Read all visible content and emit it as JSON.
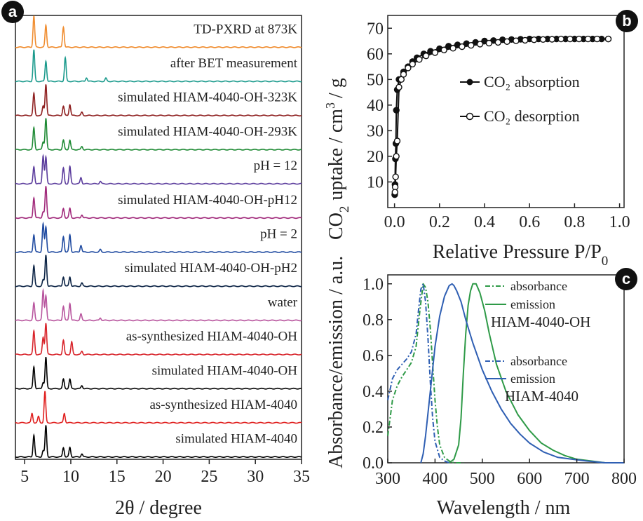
{
  "panel_labels": {
    "a": "a",
    "b": "b",
    "c": "c"
  },
  "chart_data": [
    {
      "panel": "a",
      "type": "line",
      "xlabel": "2θ / degree",
      "ylabel": "",
      "xlim": [
        4,
        35
      ],
      "xticks": [
        "5",
        "10",
        "15",
        "20",
        "25",
        "30",
        "35"
      ],
      "series": [
        {
          "name": "TD-PXRD at 873K",
          "color": "#f08c2e",
          "peaks": [
            [
              6.0,
              1.0
            ],
            [
              7.3,
              0.7
            ],
            [
              9.2,
              0.65
            ]
          ]
        },
        {
          "name": "after BET measurement",
          "color": "#1a9a8c",
          "peaks": [
            [
              6.0,
              1.0
            ],
            [
              7.3,
              0.65
            ],
            [
              9.4,
              0.75
            ],
            [
              11.7,
              0.12
            ],
            [
              13.8,
              0.1
            ]
          ]
        },
        {
          "name": "simulated HIAM-4040-OH-323K",
          "color": "#8e1f1f",
          "peaks": [
            [
              6.0,
              0.7
            ],
            [
              7.0,
              0.3
            ],
            [
              7.3,
              1.0
            ],
            [
              9.2,
              0.3
            ],
            [
              9.9,
              0.35
            ],
            [
              11.2,
              0.1
            ]
          ]
        },
        {
          "name": "simulated HIAM-4040-OH-293K",
          "color": "#1e8a34",
          "peaks": [
            [
              6.0,
              0.7
            ],
            [
              7.0,
              0.25
            ],
            [
              7.3,
              1.0
            ],
            [
              9.2,
              0.3
            ],
            [
              9.9,
              0.3
            ],
            [
              11.2,
              0.1
            ]
          ]
        },
        {
          "name": "pH = 12",
          "color": "#5a3b9c",
          "peaks": [
            [
              6.0,
              0.55
            ],
            [
              7.0,
              0.9
            ],
            [
              7.3,
              0.85
            ],
            [
              9.2,
              0.5
            ],
            [
              9.9,
              0.55
            ],
            [
              11.1,
              0.2
            ],
            [
              13.2,
              0.08
            ]
          ]
        },
        {
          "name": "simulated HIAM-4040-OH-pH12",
          "color": "#a0287a",
          "peaks": [
            [
              6.0,
              0.65
            ],
            [
              7.0,
              0.2
            ],
            [
              7.3,
              1.0
            ],
            [
              9.2,
              0.3
            ],
            [
              9.9,
              0.3
            ],
            [
              11.2,
              0.1
            ]
          ]
        },
        {
          "name": "pH = 2",
          "color": "#1f4aa0",
          "peaks": [
            [
              6.0,
              0.55
            ],
            [
              7.0,
              0.9
            ],
            [
              7.3,
              0.8
            ],
            [
              9.2,
              0.5
            ],
            [
              9.9,
              0.55
            ],
            [
              11.1,
              0.22
            ],
            [
              13.2,
              0.08
            ]
          ]
        },
        {
          "name": "simulated HIAM-4040-OH-pH2",
          "color": "#0a2244",
          "peaks": [
            [
              6.0,
              0.65
            ],
            [
              7.0,
              0.2
            ],
            [
              7.3,
              1.0
            ],
            [
              9.2,
              0.3
            ],
            [
              9.9,
              0.3
            ],
            [
              11.2,
              0.1
            ]
          ]
        },
        {
          "name": "water",
          "color": "#b8559e",
          "peaks": [
            [
              6.0,
              0.55
            ],
            [
              7.0,
              0.95
            ],
            [
              7.3,
              0.8
            ],
            [
              9.2,
              0.45
            ],
            [
              9.9,
              0.55
            ],
            [
              11.1,
              0.2
            ],
            [
              13.2,
              0.08
            ]
          ]
        },
        {
          "name": "as-synthesized HIAM-4040-OH",
          "color": "#d8232a",
          "peaks": [
            [
              6.0,
              0.75
            ],
            [
              7.0,
              0.55
            ],
            [
              7.3,
              1.0
            ],
            [
              9.2,
              0.45
            ],
            [
              10.1,
              0.4
            ],
            [
              11.2,
              0.1
            ]
          ]
        },
        {
          "name": "simulated HIAM-4040-OH",
          "color": "#000000",
          "peaks": [
            [
              6.0,
              0.7
            ],
            [
              7.0,
              0.2
            ],
            [
              7.3,
              1.0
            ],
            [
              9.2,
              0.3
            ],
            [
              9.9,
              0.3
            ],
            [
              11.2,
              0.1
            ]
          ]
        },
        {
          "name": "as-synthesized HIAM-4040",
          "color": "#e0201f",
          "peaks": [
            [
              5.8,
              0.3
            ],
            [
              6.5,
              0.2
            ],
            [
              7.2,
              1.0
            ],
            [
              9.3,
              0.3
            ]
          ]
        },
        {
          "name": "simulated HIAM-4040",
          "color": "#000000",
          "peaks": [
            [
              6.0,
              0.7
            ],
            [
              7.0,
              0.2
            ],
            [
              7.3,
              1.0
            ],
            [
              9.2,
              0.3
            ],
            [
              9.9,
              0.3
            ],
            [
              11.2,
              0.1
            ]
          ]
        }
      ]
    },
    {
      "panel": "b",
      "type": "line",
      "xlabel": "Relative Pressure P/P0",
      "ylabel": "CO2 uptake / cm3 / g",
      "xlim": [
        -0.03,
        1.02
      ],
      "ylim": [
        0,
        75
      ],
      "xticks": [
        "0.0",
        "0.2",
        "0.4",
        "0.6",
        "0.8",
        "1.0"
      ],
      "yticks": [
        "10",
        "20",
        "30",
        "40",
        "50",
        "60",
        "70"
      ],
      "series": [
        {
          "name": "CO2 absorption",
          "x": [
            0.001,
            0.002,
            0.004,
            0.006,
            0.008,
            0.012,
            0.02,
            0.04,
            0.06,
            0.08,
            0.1,
            0.13,
            0.16,
            0.2,
            0.24,
            0.28,
            0.32,
            0.36,
            0.4,
            0.44,
            0.48,
            0.52,
            0.56,
            0.6,
            0.64,
            0.68,
            0.72,
            0.76,
            0.8,
            0.84,
            0.88,
            0.92,
            0.95
          ],
          "y": [
            5,
            9,
            19,
            25,
            38,
            46,
            50,
            53,
            55,
            57,
            58.5,
            60,
            61,
            62,
            63,
            63.5,
            64,
            64.5,
            65,
            65.2,
            65.5,
            65.6,
            65.7,
            65.8,
            65.8,
            65.8,
            65.8,
            65.8,
            65.8,
            65.8,
            65.8,
            65.8,
            65.8
          ]
        },
        {
          "name": "CO2 desorption",
          "x": [
            0.95,
            0.9,
            0.86,
            0.82,
            0.78,
            0.74,
            0.7,
            0.66,
            0.62,
            0.58,
            0.54,
            0.5,
            0.46,
            0.42,
            0.38,
            0.34,
            0.3,
            0.26,
            0.22,
            0.18,
            0.14,
            0.11,
            0.08,
            0.06,
            0.04,
            0.03,
            0.02,
            0.012,
            0.008,
            0.005,
            0.003,
            0.002
          ],
          "y": [
            65.8,
            65.8,
            65.8,
            65.8,
            65.8,
            65.8,
            65.7,
            65.6,
            65.5,
            65.3,
            65.1,
            64.8,
            64.5,
            64.2,
            63.8,
            63.3,
            62.8,
            62.2,
            61.5,
            60.5,
            59.2,
            57.8,
            56,
            54.5,
            52,
            50,
            47,
            26,
            20,
            12,
            8,
            6
          ]
        }
      ]
    },
    {
      "panel": "c",
      "type": "line",
      "xlabel": "Wavelength / nm",
      "ylabel": "Absorbance/emission / a.u.",
      "xlim": [
        300,
        800
      ],
      "ylim": [
        0,
        1.05
      ],
      "xticks": [
        "300",
        "400",
        "500",
        "600",
        "700",
        "800"
      ],
      "yticks": [
        "0.0",
        "0.2",
        "0.4",
        "0.6",
        "0.8",
        "1.0"
      ],
      "series": [
        {
          "name": "HIAM-4040-OH absorbance",
          "color": "#2e9a47",
          "dash": "dashdot",
          "x": [
            300,
            310,
            320,
            330,
            340,
            350,
            360,
            368,
            375,
            380,
            385,
            390,
            395,
            400,
            405,
            410,
            420,
            430,
            440,
            450,
            460
          ],
          "y": [
            0.15,
            0.35,
            0.43,
            0.48,
            0.52,
            0.56,
            0.65,
            0.85,
            1.0,
            0.98,
            0.9,
            0.75,
            0.55,
            0.35,
            0.2,
            0.1,
            0.03,
            0.01,
            0.0,
            0.0,
            0.0
          ]
        },
        {
          "name": "HIAM-4040-OH emission",
          "color": "#2e9a47",
          "dash": "solid",
          "x": [
            430,
            440,
            450,
            455,
            460,
            465,
            470,
            475,
            480,
            487,
            495,
            505,
            515,
            530,
            550,
            575,
            600,
            625,
            650,
            675,
            700,
            730,
            760,
            800
          ],
          "y": [
            0.0,
            0.02,
            0.1,
            0.25,
            0.5,
            0.72,
            0.88,
            0.96,
            1.0,
            1.0,
            0.95,
            0.85,
            0.72,
            0.55,
            0.4,
            0.27,
            0.18,
            0.11,
            0.07,
            0.04,
            0.02,
            0.01,
            0.0,
            0.0
          ]
        },
        {
          "name": "HIAM-4040 absorbance",
          "color": "#2f5fb3",
          "dash": "dashdot",
          "x": [
            300,
            310,
            320,
            330,
            340,
            350,
            360,
            365,
            370,
            375,
            380,
            385,
            390,
            395,
            400,
            410,
            420,
            430
          ],
          "y": [
            0.35,
            0.47,
            0.52,
            0.55,
            0.58,
            0.62,
            0.72,
            0.85,
            0.97,
            1.0,
            0.9,
            0.7,
            0.45,
            0.25,
            0.12,
            0.03,
            0.01,
            0.0
          ]
        },
        {
          "name": "HIAM-4040 emission",
          "color": "#2f5fb3",
          "dash": "solid",
          "x": [
            370,
            375,
            380,
            390,
            400,
            410,
            420,
            430,
            436,
            440,
            446,
            455,
            465,
            480,
            500,
            520,
            540,
            560,
            580,
            600,
            630,
            660,
            690,
            720,
            760,
            800
          ],
          "y": [
            0.0,
            0.05,
            0.15,
            0.4,
            0.65,
            0.82,
            0.93,
            0.99,
            1.0,
            0.99,
            0.96,
            0.9,
            0.8,
            0.67,
            0.52,
            0.4,
            0.3,
            0.22,
            0.16,
            0.11,
            0.06,
            0.03,
            0.02,
            0.01,
            0.0,
            0.0
          ]
        }
      ]
    }
  ],
  "legend_b": {
    "absorption": "CO₂ absorption",
    "desorption": "CO₂ desorption"
  },
  "legend_c": {
    "top_abs": "absorbance",
    "top_em": "emission",
    "top_name": "HIAM-4040-OH",
    "bot_abs": "absorbance",
    "bot_em": "emission",
    "bot_name": "HIAM-4040"
  },
  "axis_text": {
    "a_x": "2θ / degree",
    "b_x": "Relative Pressure P/P",
    "b_x_sub": "0",
    "b_y_co": "CO",
    "b_y_sub": "2",
    "b_y_rest": "uptake / cm",
    "b_y_sup": "3",
    "b_y_end": "/ g",
    "c_x": "Wavelength / nm",
    "c_y": "Absorbance/emission / a.u."
  }
}
